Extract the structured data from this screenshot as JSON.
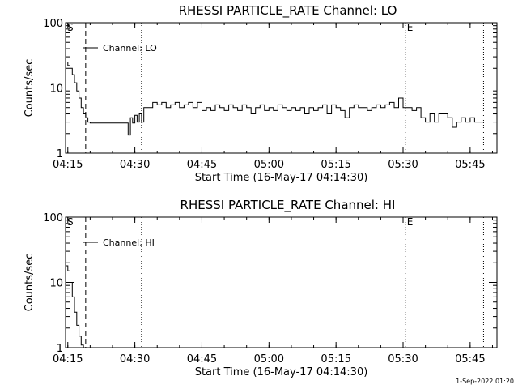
{
  "footer_timestamp": "1-Sep-2022 01:20",
  "chart_data": [
    {
      "type": "line",
      "title": "RHESSI PARTICLE_RATE Channel: LO",
      "xlabel": "Start Time (16-May-17 04:14:30)",
      "ylabel": "Counts/sec",
      "yscale": "log",
      "xlim": [
        "04:14:30",
        "05:51:00"
      ],
      "ylim": [
        1,
        100
      ],
      "x_ticks": [
        "04:15",
        "04:30",
        "04:45",
        "05:00",
        "05:15",
        "05:30",
        "05:45"
      ],
      "y_ticks": [
        "1",
        "10",
        "100"
      ],
      "legend": "Channel: LO",
      "markers": [
        {
          "label": "S",
          "time": "04:14:30",
          "style": "dotted"
        },
        {
          "label": "",
          "time": "04:19:00",
          "style": "dashed"
        },
        {
          "label": "",
          "time": "04:31:30",
          "style": "dotted"
        },
        {
          "label": "E",
          "time": "05:30:30",
          "style": "dotted"
        },
        {
          "label": "",
          "time": "05:48:00",
          "style": "dotted"
        }
      ],
      "series": [
        {
          "x": [
            "04:14:30",
            "04:15:00",
            "04:15:30",
            "04:16:00",
            "04:16:30",
            "04:17:00",
            "04:17:30",
            "04:18:00",
            "04:18:30",
            "04:19:00",
            "04:19:30",
            "04:20:00",
            "04:21:00",
            "04:24:00",
            "04:26:00",
            "04:28:00",
            "04:28:30",
            "04:29:00",
            "04:29:30",
            "04:30:00",
            "04:30:30",
            "04:31:00",
            "04:31:30",
            "04:32:00",
            "04:33:00",
            "04:34:00",
            "04:35:00",
            "04:36:00",
            "04:37:00",
            "04:38:00",
            "04:39:00",
            "04:40:00",
            "04:41:00",
            "04:42:00",
            "04:43:00",
            "04:44:00",
            "04:45:00",
            "04:46:00",
            "04:47:00",
            "04:48:00",
            "04:49:00",
            "04:50:00",
            "04:51:00",
            "04:52:00",
            "04:53:00",
            "04:54:00",
            "04:55:00",
            "04:56:00",
            "04:57:00",
            "04:58:00",
            "04:59:00",
            "05:00:00",
            "05:01:00",
            "05:02:00",
            "05:03:00",
            "05:04:00",
            "05:05:00",
            "05:06:00",
            "05:07:00",
            "05:08:00",
            "05:09:00",
            "05:10:00",
            "05:11:00",
            "05:12:00",
            "05:13:00",
            "05:14:00",
            "05:15:00",
            "05:16:00",
            "05:17:00",
            "05:18:00",
            "05:19:00",
            "05:20:00",
            "05:21:00",
            "05:22:00",
            "05:23:00",
            "05:24:00",
            "05:25:00",
            "05:26:00",
            "05:27:00",
            "05:28:00",
            "05:29:00",
            "05:30:00",
            "05:31:00",
            "05:32:00",
            "05:33:00",
            "05:34:00",
            "05:35:00",
            "05:36:00",
            "05:37:00",
            "05:38:00",
            "05:39:00",
            "05:40:00",
            "05:41:00",
            "05:42:00",
            "05:43:00",
            "05:44:00",
            "05:45:00",
            "05:46:00",
            "05:47:00",
            "05:48:00"
          ],
          "y": [
            25,
            22,
            20,
            16,
            12,
            9,
            7,
            5,
            4,
            3.5,
            3,
            2.9,
            2.9,
            2.9,
            2.9,
            2.9,
            1.9,
            3.5,
            2.9,
            3.8,
            3,
            4,
            3,
            5,
            5,
            6,
            5.5,
            6,
            5,
            5.5,
            6,
            5,
            5.5,
            6,
            5,
            6,
            4.5,
            5,
            4.5,
            5.5,
            5,
            4.5,
            5.5,
            5,
            4.5,
            5.5,
            5,
            4,
            5,
            5.5,
            4.5,
            5,
            4.5,
            5.5,
            5,
            4.5,
            5,
            4.5,
            5,
            4,
            5,
            4.5,
            5,
            5.5,
            4,
            5.5,
            5,
            4.5,
            3.5,
            5,
            5.5,
            5,
            5,
            4.5,
            5,
            5.5,
            5,
            5.5,
            6,
            5,
            7,
            5,
            5,
            4.5,
            5,
            3.5,
            3,
            4,
            3,
            4,
            4,
            3.5,
            2.5,
            3,
            3.5,
            3,
            3.5,
            3,
            3,
            3
          ]
        }
      ]
    },
    {
      "type": "line",
      "title": "RHESSI PARTICLE_RATE Channel: HI",
      "xlabel": "Start Time (16-May-17 04:14:30)",
      "ylabel": "Counts/sec",
      "yscale": "log",
      "xlim": [
        "04:14:30",
        "05:51:00"
      ],
      "ylim": [
        1,
        100
      ],
      "x_ticks": [
        "04:15",
        "04:30",
        "04:45",
        "05:00",
        "05:15",
        "05:30",
        "05:45"
      ],
      "y_ticks": [
        "1",
        "10",
        "100"
      ],
      "legend": "Channel: HI",
      "markers": [
        {
          "label": "S",
          "time": "04:14:30",
          "style": "dotted"
        },
        {
          "label": "",
          "time": "04:19:00",
          "style": "dashed"
        },
        {
          "label": "",
          "time": "04:31:30",
          "style": "dotted"
        },
        {
          "label": "E",
          "time": "05:30:30",
          "style": "dotted"
        },
        {
          "label": "",
          "time": "05:48:00",
          "style": "dotted"
        }
      ],
      "series": [
        {
          "x": [
            "04:14:30",
            "04:15:00",
            "04:15:30",
            "04:16:00",
            "04:16:30",
            "04:17:00",
            "04:17:30",
            "04:18:00",
            "04:18:30"
          ],
          "y": [
            18,
            15,
            10,
            6,
            3.5,
            2.2,
            1.5,
            1.1,
            1
          ]
        }
      ]
    }
  ]
}
